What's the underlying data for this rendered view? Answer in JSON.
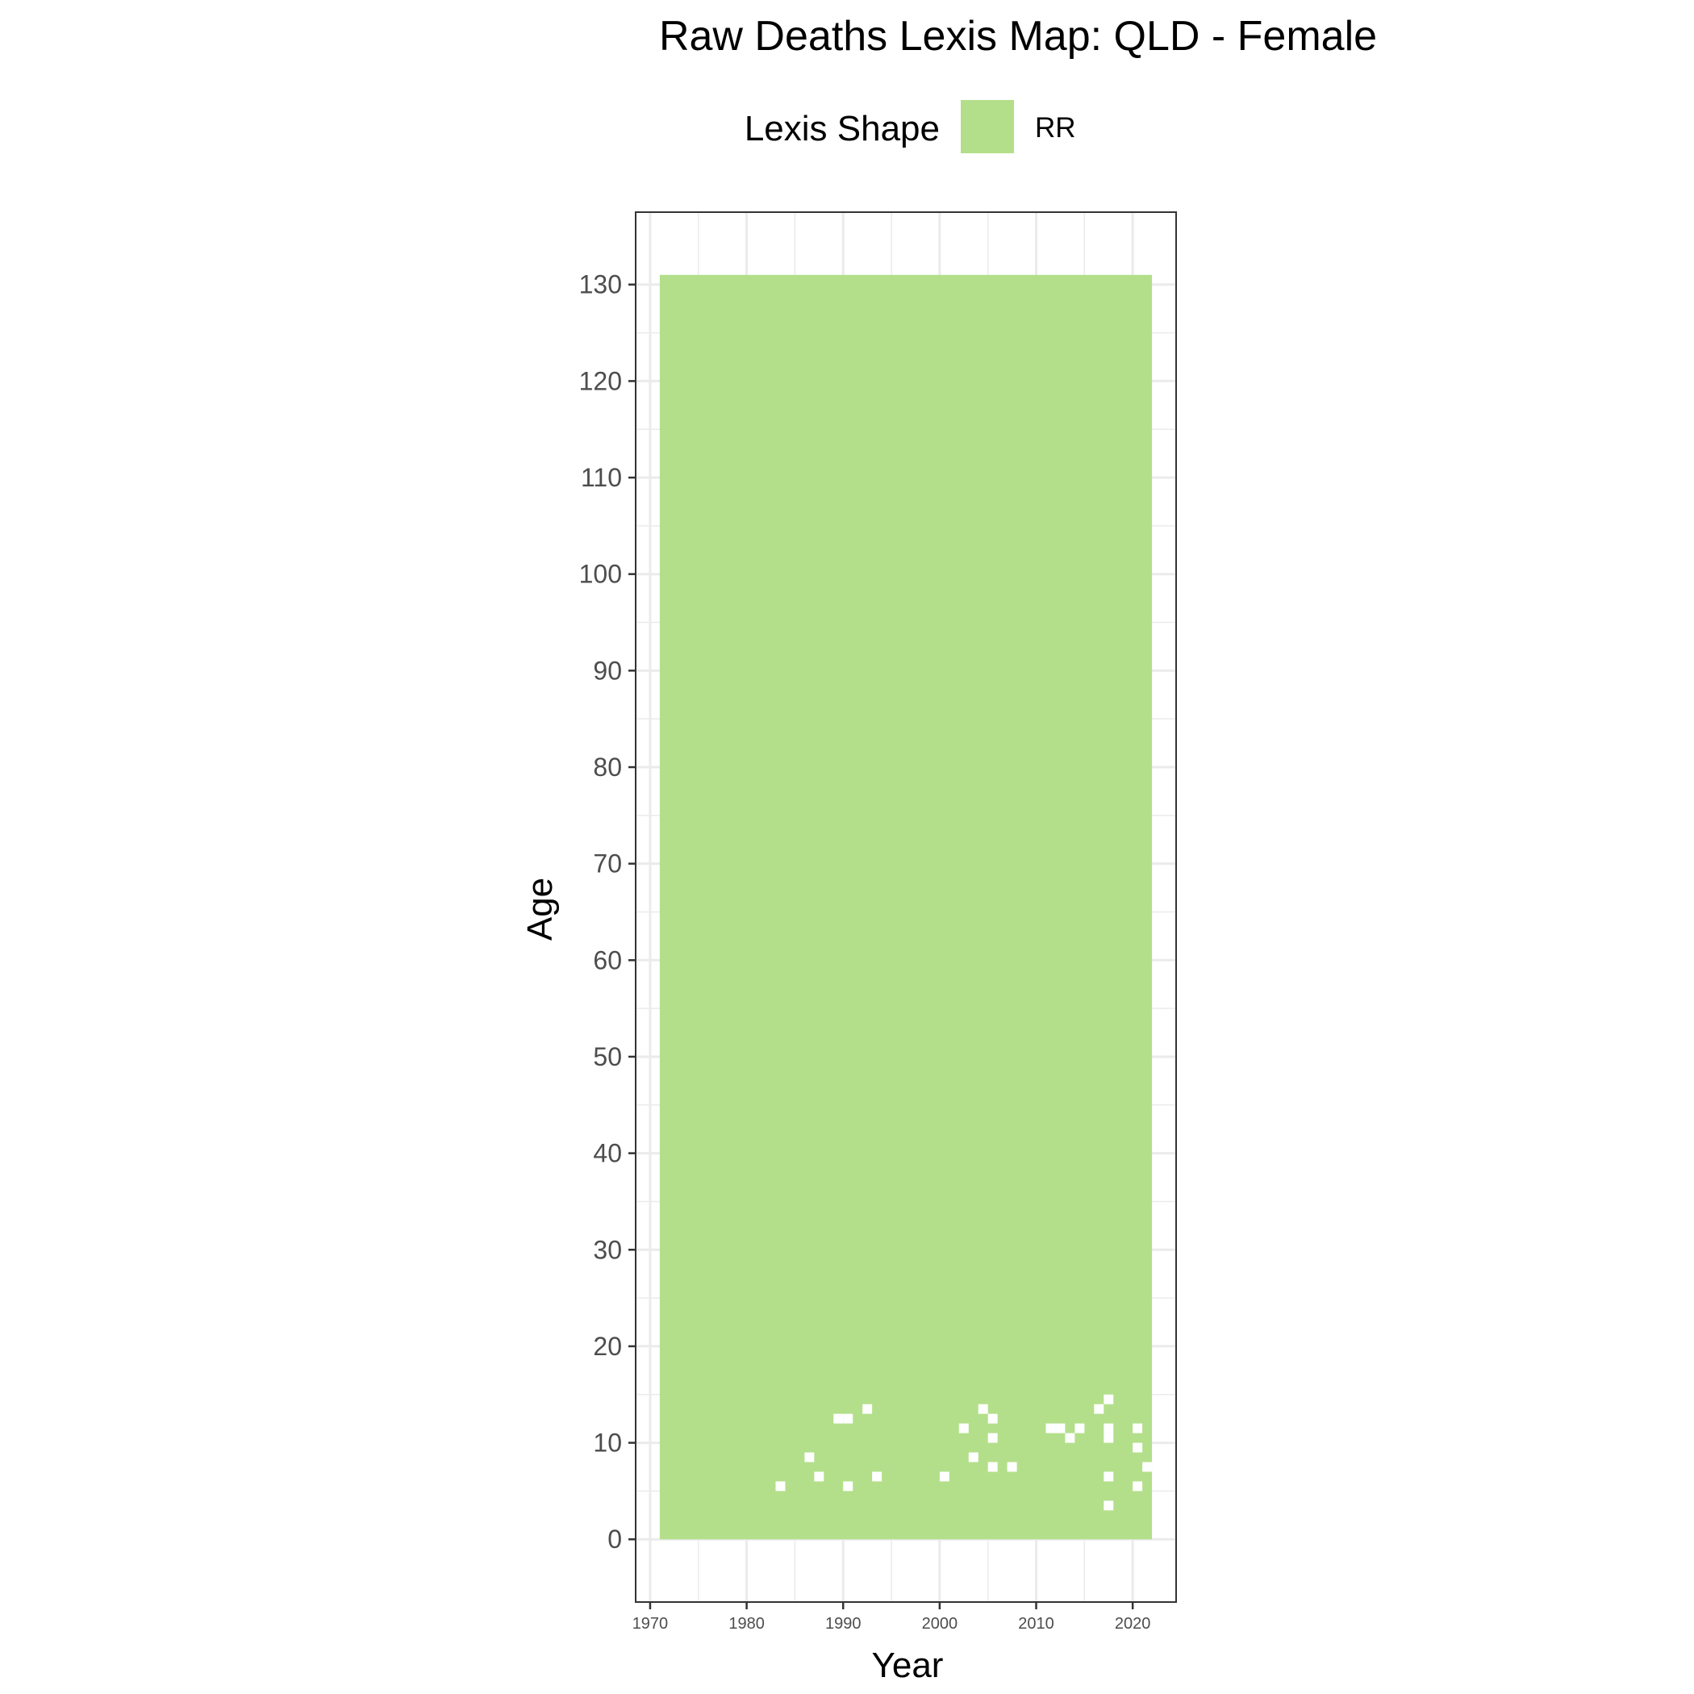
{
  "chart_data": {
    "type": "heatmap",
    "title": "Raw Deaths Lexis Map: QLD - Female",
    "xlabel": "Year",
    "ylabel": "Age",
    "xlim": [
      1968.5,
      2024.5
    ],
    "ylim": [
      -6.5,
      137.5
    ],
    "x_ticks": [
      1970,
      1980,
      1990,
      2000,
      2010,
      2020
    ],
    "y_ticks": [
      0,
      10,
      20,
      30,
      40,
      50,
      60,
      70,
      80,
      90,
      100,
      110,
      120,
      130
    ],
    "grid": true,
    "legend": {
      "title": "Lexis Shape",
      "position": "top",
      "entries": [
        {
          "label": "RR",
          "color": "#b3df8a"
        }
      ]
    },
    "fill_region": {
      "year_range": [
        1971,
        2022
      ],
      "age_range": [
        0,
        131
      ],
      "shape": "RR"
    },
    "missing_cells": [
      [
        1983,
        5
      ],
      [
        1986,
        8
      ],
      [
        1987,
        6
      ],
      [
        1989,
        12
      ],
      [
        1990,
        12
      ],
      [
        1990,
        5
      ],
      [
        1992,
        13
      ],
      [
        1993,
        6
      ],
      [
        2000,
        6
      ],
      [
        2002,
        11
      ],
      [
        2003,
        8
      ],
      [
        2004,
        13
      ],
      [
        2005,
        12
      ],
      [
        2005,
        10
      ],
      [
        2005,
        7
      ],
      [
        2007,
        7
      ],
      [
        2011,
        11
      ],
      [
        2012,
        11
      ],
      [
        2013,
        10
      ],
      [
        2014,
        11
      ],
      [
        2016,
        13
      ],
      [
        2017,
        14
      ],
      [
        2017,
        11
      ],
      [
        2017,
        10
      ],
      [
        2017,
        6
      ],
      [
        2017,
        3
      ],
      [
        2020,
        11
      ],
      [
        2020,
        9
      ],
      [
        2020,
        5
      ],
      [
        2021,
        7
      ]
    ],
    "colors": {
      "RR": "#b3df8a",
      "panel_border": "#333333",
      "grid": "#ebebeb"
    }
  }
}
